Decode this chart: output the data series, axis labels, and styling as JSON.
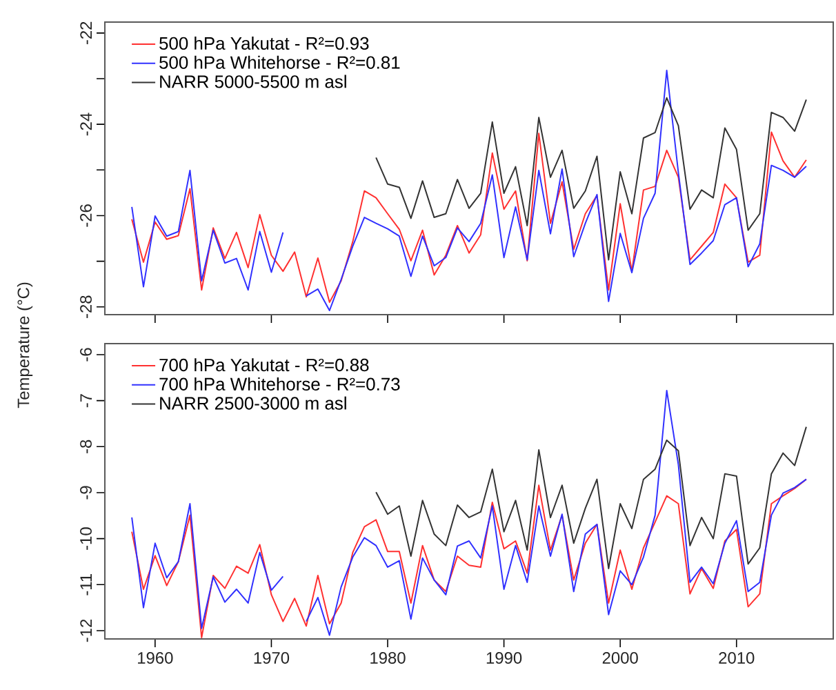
{
  "chart_data": [
    {
      "type": "line",
      "ylabel": "Temperature (°C)",
      "legend": "top left",
      "tick_labels": "y",
      "xlim": [
        1955.68,
        2018.32
      ],
      "ylim": [
        -28.17,
        -21.76
      ],
      "xticks": [
        1960,
        1970,
        1980,
        1990,
        2000,
        2010
      ],
      "yticks": [
        -28,
        {
          "value": -27,
          "label": null
        },
        -26,
        {
          "value": -25,
          "label": null
        },
        -24,
        {
          "value": -23,
          "label": null
        },
        -22
      ],
      "x": [
        1958,
        1959,
        1960,
        1961,
        1962,
        1963,
        1964,
        1965,
        1966,
        1967,
        1968,
        1969,
        1970,
        1971,
        1972,
        1973,
        1974,
        1975,
        1976,
        1977,
        1978,
        1979,
        1980,
        1981,
        1982,
        1983,
        1984,
        1985,
        1986,
        1987,
        1988,
        1989,
        1990,
        1991,
        1992,
        1993,
        1994,
        1995,
        1996,
        1997,
        1998,
        1999,
        2000,
        2001,
        2002,
        2003,
        2004,
        2005,
        2006,
        2007,
        2008,
        2009,
        2010,
        2011,
        2012,
        2013,
        2014,
        2015,
        2016
      ],
      "series": [
        {
          "name": "500 hPa Yakutat - R²=0.93",
          "color": "#ff3030",
          "values": [
            -26.08,
            -27.02,
            -26.14,
            -26.52,
            -26.44,
            -25.41,
            -27.63,
            -26.27,
            -26.94,
            -26.37,
            -27.14,
            -25.98,
            -26.87,
            -27.22,
            -26.8,
            -27.78,
            -26.93,
            -27.9,
            -27.43,
            -26.57,
            -25.46,
            -25.61,
            -25.96,
            -26.3,
            -26.99,
            -26.32,
            -27.3,
            -26.87,
            -26.22,
            -26.82,
            -26.42,
            -24.63,
            -25.86,
            -25.46,
            -26.99,
            -24.2,
            -26.17,
            -25.26,
            -26.74,
            -25.96,
            -25.56,
            -27.63,
            -25.74,
            -27.22,
            -25.44,
            -25.36,
            -24.57,
            -25.16,
            -26.97,
            -26.67,
            -26.37,
            -25.31,
            -25.61,
            -27.02,
            -26.87,
            -24.17,
            -24.8,
            -25.16,
            -24.78
          ]
        },
        {
          "name": "500 hPa Whitehorse - R²=0.81",
          "color": "#3030ff",
          "values": [
            -25.81,
            -27.56,
            -26.01,
            -26.45,
            -26.35,
            -25.01,
            -27.43,
            -26.32,
            -27.04,
            -26.94,
            -27.63,
            -26.35,
            -27.24,
            -26.37,
            null,
            -27.76,
            -27.61,
            -28.08,
            -27.4,
            -26.67,
            -26.04,
            -26.17,
            -26.29,
            -26.45,
            -27.33,
            -26.45,
            -27.1,
            -26.92,
            -26.27,
            -26.57,
            -26.17,
            -25.11,
            -26.92,
            -25.81,
            -26.97,
            -25.01,
            -26.4,
            -24.98,
            -26.9,
            -26.17,
            -25.54,
            -27.88,
            -26.39,
            -27.25,
            -26.06,
            -25.51,
            -22.82,
            -25.06,
            -27.07,
            -26.82,
            -26.55,
            -25.76,
            -25.61,
            -27.12,
            -26.62,
            -24.9,
            -25.01,
            -25.16,
            -24.92
          ]
        },
        {
          "name": "NARR 5000-5500 m asl",
          "color": "#333333",
          "values": [
            null,
            null,
            null,
            null,
            null,
            null,
            null,
            null,
            null,
            null,
            null,
            null,
            null,
            null,
            null,
            null,
            null,
            null,
            null,
            null,
            null,
            -24.73,
            -25.31,
            -25.38,
            -26.06,
            -25.24,
            -26.04,
            -25.96,
            -25.21,
            -25.84,
            -25.51,
            -23.95,
            -25.51,
            -24.93,
            -26.22,
            -23.85,
            -25.16,
            -24.57,
            -25.84,
            -25.46,
            -24.7,
            -26.97,
            -25.04,
            -25.96,
            -24.3,
            -24.18,
            -23.42,
            -24.03,
            -25.86,
            -25.44,
            -25.61,
            -24.08,
            -24.55,
            -26.32,
            -25.96,
            -23.74,
            -23.85,
            -24.15,
            -23.46
          ]
        }
      ]
    },
    {
      "type": "line",
      "legend": "top left",
      "xlim": [
        1955.68,
        2018.32
      ],
      "ylim": [
        -12.18,
        -5.76
      ],
      "xticks": [
        1960,
        1970,
        1980,
        1990,
        2000,
        2010
      ],
      "yticks": [
        -12,
        -11,
        -10,
        -9,
        -8,
        -7,
        -6
      ],
      "x": [
        1958,
        1959,
        1960,
        1961,
        1962,
        1963,
        1964,
        1965,
        1966,
        1967,
        1968,
        1969,
        1970,
        1971,
        1972,
        1973,
        1974,
        1975,
        1976,
        1977,
        1978,
        1979,
        1980,
        1981,
        1982,
        1983,
        1984,
        1985,
        1986,
        1987,
        1988,
        1989,
        1990,
        1991,
        1992,
        1993,
        1994,
        1995,
        1996,
        1997,
        1998,
        1999,
        2000,
        2001,
        2002,
        2003,
        2004,
        2005,
        2006,
        2007,
        2008,
        2009,
        2010,
        2011,
        2012,
        2013,
        2014,
        2015,
        2016
      ],
      "series": [
        {
          "name": "700 hPa Yakutat - R²=0.88",
          "color": "#ff3030",
          "values": [
            -9.85,
            -11.1,
            -10.37,
            -11.02,
            -10.5,
            -9.49,
            -12.15,
            -10.8,
            -11.08,
            -10.6,
            -10.75,
            -10.13,
            -11.22,
            -11.8,
            -11.3,
            -11.9,
            -10.8,
            -11.85,
            -11.4,
            -10.3,
            -9.74,
            -9.59,
            -10.28,
            -10.28,
            -11.4,
            -10.15,
            -10.9,
            -11.15,
            -10.38,
            -10.58,
            -10.62,
            -9.21,
            -10.22,
            -10.05,
            -10.75,
            -8.84,
            -10.25,
            -9.49,
            -10.9,
            -10.1,
            -9.69,
            -11.4,
            -10.25,
            -11.1,
            -10.2,
            -9.64,
            -9.07,
            -9.24,
            -11.2,
            -10.65,
            -11.08,
            -10.05,
            -9.8,
            -11.48,
            -11.2,
            -9.24,
            -9.07,
            -8.91,
            -8.71
          ]
        },
        {
          "name": "700 hPa Whitehorse - R²=0.73",
          "color": "#3030ff",
          "values": [
            -9.54,
            -11.5,
            -10.1,
            -10.85,
            -10.5,
            -9.24,
            -11.95,
            -10.83,
            -11.38,
            -11.1,
            -11.4,
            -10.3,
            -11.12,
            -10.82,
            null,
            -11.8,
            -11.28,
            -12.1,
            -11.05,
            -10.4,
            -9.98,
            -10.15,
            -10.62,
            -10.48,
            -11.75,
            -10.42,
            -10.9,
            -11.22,
            -10.16,
            -10.05,
            -10.42,
            -9.29,
            -11.1,
            -10.15,
            -10.95,
            -9.29,
            -10.38,
            -9.47,
            -11.15,
            -9.9,
            -9.69,
            -11.65,
            -10.7,
            -11.0,
            -10.4,
            -9.49,
            -6.78,
            -8.39,
            -10.95,
            -10.62,
            -10.98,
            -10.1,
            -9.61,
            -11.15,
            -10.95,
            -9.49,
            -9.01,
            -8.89,
            -8.71
          ]
        },
        {
          "name": "NARR 2500-3000 m asl",
          "color": "#333333",
          "values": [
            null,
            null,
            null,
            null,
            null,
            null,
            null,
            null,
            null,
            null,
            null,
            null,
            null,
            null,
            null,
            null,
            null,
            null,
            null,
            null,
            null,
            -8.99,
            -9.47,
            -9.29,
            -10.38,
            -9.17,
            -9.9,
            -10.15,
            -9.27,
            -9.54,
            -9.42,
            -8.49,
            -9.85,
            -9.17,
            -10.25,
            -8.07,
            -9.54,
            -8.84,
            -10.1,
            -9.34,
            -8.71,
            -10.65,
            -9.24,
            -9.78,
            -8.71,
            -8.49,
            -7.86,
            -8.09,
            -10.15,
            -9.54,
            -10.0,
            -8.59,
            -8.64,
            -10.55,
            -10.2,
            -8.59,
            -8.14,
            -8.41,
            -7.57
          ]
        }
      ]
    }
  ]
}
